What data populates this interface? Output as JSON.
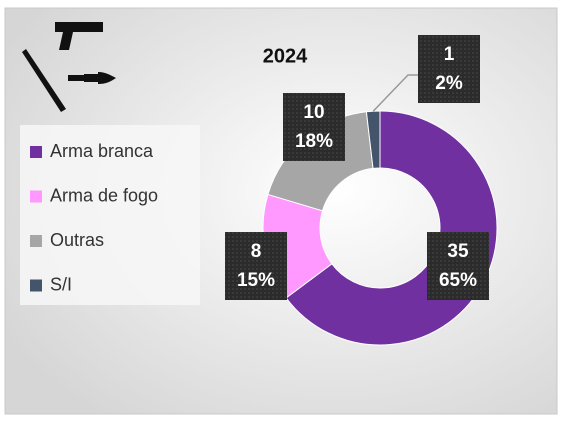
{
  "chart_data": {
    "type": "donut",
    "title": "2024",
    "categories": [
      "Arma branca",
      "Arma de fogo",
      "Outras",
      "S/I"
    ],
    "values": [
      35,
      8,
      10,
      1
    ],
    "percentages": [
      65,
      15,
      18,
      2
    ],
    "percentage_labels": [
      "65%",
      "15%",
      "18%",
      "2%"
    ],
    "colors": [
      "#7030a0",
      "#ff99ff",
      "#a6a6a6",
      "#44546a"
    ],
    "legend": "left"
  }
}
